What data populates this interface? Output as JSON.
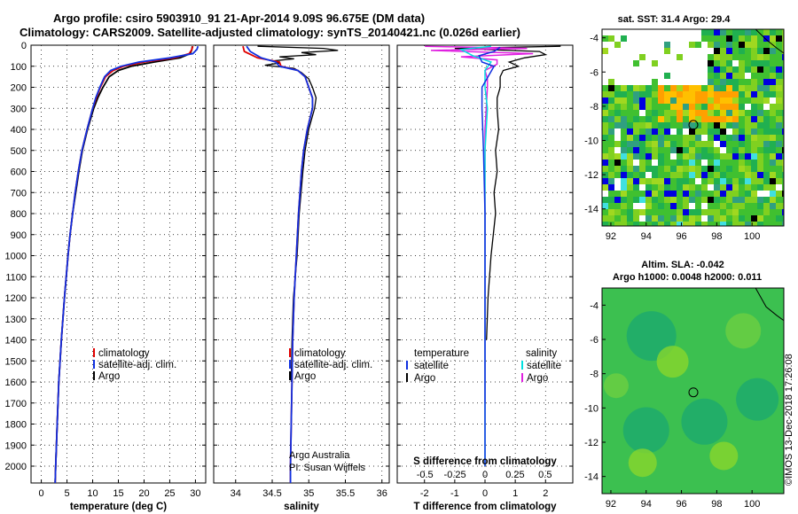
{
  "title_line1": "Argo profile: csiro 5903910_91 21-Apr-2014 9.09S 96.675E (DM data)",
  "title_line2": "Climatology: CARS2009. Satellite-adjusted climatology: synTS_20140421.nc (0.026d earlier)",
  "map_top_title": "sat. SST: 31.4 Argo: 29.4",
  "map_bottom_title1": "Altim. SLA: -0.042",
  "map_bottom_title2": "Argo h1000: 0.0048 h2000: 0.011",
  "credit": "©IMOS 13-Dec-2018 17:26:08",
  "attribution1": "Argo Australia",
  "attribution2": "PI: Susan Wijffels",
  "colors": {
    "climatology": "#e00000",
    "satellite": "#1030e0",
    "argo": "#000000",
    "sal_satellite": "#00e0e0",
    "sal_argo": "#e020e0"
  },
  "legend_main": [
    "climatology",
    "satellite-adj. clim.",
    "Argo"
  ],
  "legend_diff": {
    "temperature": "temperature",
    "salinity": "salinity",
    "satellite": "satellite",
    "argo": "Argo"
  },
  "chart_data": [
    {
      "type": "line",
      "xlabel": "temperature (deg C)",
      "ylabel": "",
      "xlim": [
        -2,
        32
      ],
      "ylim": [
        2080,
        0
      ],
      "xticks": [
        "0",
        "5",
        "10",
        "15",
        "20",
        "25",
        "30"
      ],
      "yticks": [
        "0",
        "100",
        "200",
        "300",
        "400",
        "500",
        "600",
        "700",
        "800",
        "900",
        "1000",
        "1100",
        "1200",
        "1300",
        "1400",
        "1500",
        "1600",
        "1700",
        "1800",
        "1900",
        "2000"
      ],
      "grid": true,
      "legend": "lower-middle",
      "series": [
        {
          "name": "climatology",
          "depth": [
            5,
            20,
            40,
            60,
            80,
            100,
            120,
            150,
            200,
            250,
            300,
            400,
            500,
            600,
            700,
            800,
            900,
            1000,
            1200,
            1400,
            1600,
            1800,
            2000,
            2080
          ],
          "values": [
            29.5,
            29.3,
            28.8,
            26,
            20,
            16,
            14,
            12.5,
            11.5,
            10.7,
            10,
            8.9,
            7.9,
            7.2,
            6.6,
            6.1,
            5.6,
            5.2,
            4.5,
            3.9,
            3.4,
            3.1,
            2.8,
            2.7
          ]
        },
        {
          "name": "satellite-adj. clim.",
          "depth": [
            5,
            20,
            40,
            60,
            80,
            100,
            120,
            150,
            200,
            250,
            300,
            400,
            500,
            600,
            700,
            800,
            900,
            1000,
            1200,
            1400,
            1600,
            1800,
            2000,
            2080
          ],
          "values": [
            30.5,
            30.3,
            29.5,
            25,
            19,
            15.5,
            13.5,
            12.3,
            11.4,
            10.6,
            10,
            8.9,
            7.9,
            7.2,
            6.6,
            6.1,
            5.6,
            5.2,
            4.5,
            3.9,
            3.4,
            3.1,
            2.8,
            2.7
          ]
        },
        {
          "name": "Argo",
          "depth": [
            5,
            20,
            40,
            60,
            80,
            100,
            120,
            150,
            200,
            250,
            300,
            400,
            500,
            600,
            700,
            800,
            900,
            1000,
            1200,
            1400,
            1600,
            1800,
            2000,
            2080
          ],
          "values": [
            29.4,
            29.3,
            29,
            27,
            22,
            17.5,
            15,
            13.2,
            12,
            11,
            10.2,
            9,
            8,
            7.3,
            6.7,
            6.1,
            5.6,
            5.2,
            4.5,
            3.9,
            3.4,
            3.1,
            2.8,
            2.7
          ]
        }
      ]
    },
    {
      "type": "line",
      "xlabel": "salinity",
      "ylabel": "",
      "xlim": [
        33.7,
        36.1
      ],
      "ylim": [
        2080,
        0
      ],
      "xticks": [
        "34",
        "34.5",
        "35",
        "35.5",
        "36"
      ],
      "grid": true,
      "legend": "lower-middle",
      "series": [
        {
          "name": "climatology",
          "depth": [
            5,
            30,
            60,
            80,
            100,
            120,
            150,
            200,
            250,
            300,
            400,
            500,
            600,
            800,
            1000,
            1200,
            1400,
            1600,
            2000,
            2080
          ],
          "values": [
            34.1,
            34.12,
            34.3,
            34.6,
            34.62,
            34.85,
            34.95,
            35.0,
            35.05,
            35.05,
            34.98,
            34.93,
            34.9,
            34.86,
            34.83,
            34.8,
            34.78,
            34.77,
            34.75,
            34.75
          ]
        },
        {
          "name": "satellite-adj. clim.",
          "depth": [
            5,
            30,
            60,
            80,
            100,
            120,
            150,
            200,
            250,
            300,
            400,
            500,
            600,
            800,
            1000,
            1200,
            1400,
            1600,
            2000,
            2080
          ],
          "values": [
            34.15,
            34.2,
            34.35,
            34.55,
            34.6,
            34.85,
            34.95,
            35.0,
            35.05,
            35.05,
            34.98,
            34.93,
            34.9,
            34.86,
            34.83,
            34.8,
            34.78,
            34.77,
            34.75,
            34.75
          ]
        },
        {
          "name": "Argo",
          "depth": [
            5,
            15,
            25,
            35,
            45,
            55,
            65,
            75,
            85,
            95,
            110,
            130,
            160,
            200,
            250,
            300,
            400,
            500,
            600,
            800,
            1000,
            1200,
            1400,
            1600
          ],
          "values": [
            34.3,
            35.2,
            35.4,
            34.9,
            35.1,
            34.6,
            34.8,
            34.5,
            34.6,
            34.4,
            34.8,
            34.9,
            35.0,
            35.05,
            35.1,
            35.08,
            35.0,
            34.95,
            34.92,
            34.87,
            34.84,
            34.79,
            34.77,
            34.76
          ]
        }
      ]
    },
    {
      "type": "line",
      "xlabel": "T difference from climatology",
      "x2label": "S difference from climatology",
      "xlim": [
        -2.9,
        2.9
      ],
      "x2lim": [
        -0.73,
        0.73
      ],
      "ylim": [
        2080,
        0
      ],
      "xticks": [
        "-2",
        "-1",
        "0",
        "1",
        "2"
      ],
      "x2ticks": [
        "-0.5",
        "-0.25",
        "0",
        "0.25",
        "0.5"
      ],
      "grid": true,
      "legend": "lower-middle",
      "series": [
        {
          "name": "temperature satellite",
          "depth": [
            10,
            30,
            50,
            80,
            100,
            150,
            200,
            300,
            500,
            800,
            1200,
            1600,
            2000
          ],
          "values": [
            0.5,
            0.3,
            -0.2,
            -0.1,
            0.3,
            0.1,
            -0.1,
            -0.1,
            -0.05,
            0.0,
            0.0,
            0.0,
            0.0
          ]
        },
        {
          "name": "temperature Argo",
          "depth": [
            5,
            15,
            30,
            45,
            60,
            80,
            100,
            120,
            150,
            200,
            250,
            300,
            400,
            500,
            600,
            700,
            800,
            1000,
            1200,
            1400
          ],
          "values": [
            2.5,
            -1.0,
            1.8,
            2.0,
            1.3,
            0.8,
            1.1,
            0.6,
            0.5,
            0.5,
            0.4,
            0.4,
            0.45,
            0.35,
            0.4,
            0.3,
            0.35,
            0.2,
            0.1,
            0.05
          ]
        },
        {
          "name": "salinity satellite",
          "depth": [
            5,
            20,
            50,
            80,
            120,
            200,
            300,
            500,
            800,
            1200,
            1600,
            2000
          ],
          "values": [
            0.05,
            -0.2,
            -0.1,
            0.05,
            0.0,
            0.0,
            0.02,
            0.0,
            0.0,
            0.0,
            0.0,
            0.0
          ]
        },
        {
          "name": "salinity Argo",
          "depth": [
            5,
            15,
            25,
            40,
            55,
            70,
            90,
            120,
            160,
            200,
            300,
            400,
            500,
            700,
            900,
            1200,
            1300,
            1500,
            1700
          ],
          "values": [
            -0.5,
            0.35,
            -0.45,
            0.4,
            -0.2,
            0.1,
            0.1,
            0.0,
            0.02,
            0.02,
            0.01,
            0.0,
            0.0,
            0.0,
            0.0,
            0.0,
            0.0,
            0.0,
            0.0
          ]
        }
      ]
    },
    {
      "type": "heatmap",
      "title": "sat. SST: 31.4 Argo: 29.4",
      "xlim": [
        91.5,
        101.8
      ],
      "ylim": [
        -15,
        -3.5
      ],
      "xticks": [
        "92",
        "94",
        "96",
        "98",
        "100"
      ],
      "yticks": [
        "-4",
        "-6",
        "-8",
        "-10",
        "-12",
        "-14"
      ],
      "profile_location": [
        96.675,
        -9.09
      ]
    },
    {
      "type": "heatmap",
      "title": "Altim. SLA: -0.042",
      "xlim": [
        91.5,
        101.8
      ],
      "ylim": [
        -15,
        -3
      ],
      "xticks": [
        "92",
        "94",
        "96",
        "98",
        "100"
      ],
      "yticks": [
        "-4",
        "-6",
        "-8",
        "-10",
        "-12",
        "-14"
      ],
      "profile_location": [
        96.675,
        -9.09
      ]
    }
  ]
}
